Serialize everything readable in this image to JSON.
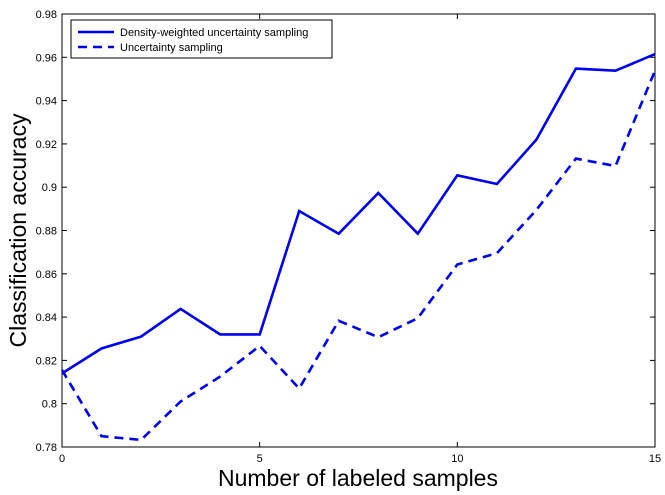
{
  "chart_data": {
    "type": "line",
    "title": "",
    "xlabel": "Number of labeled samples",
    "ylabel": "Classification accuracy",
    "xlim": [
      0,
      15
    ],
    "ylim": [
      0.78,
      0.98
    ],
    "xticks": [
      0,
      5,
      10,
      15
    ],
    "xtick_labels": [
      "0",
      "5",
      "10",
      "15"
    ],
    "yticks": [
      0.78,
      0.8,
      0.82,
      0.84,
      0.86,
      0.88,
      0.9,
      0.92,
      0.94,
      0.96,
      0.98
    ],
    "ytick_labels": [
      "0.78",
      "0.8",
      "0.82",
      "0.84",
      "0.86",
      "0.88",
      "0.9",
      "0.92",
      "0.94",
      "0.96",
      "0.98"
    ],
    "grid": false,
    "legend_position": "top-left",
    "x": [
      0,
      1,
      2,
      3,
      4,
      5,
      6,
      7,
      8,
      9,
      10,
      11,
      12,
      13,
      14,
      15
    ],
    "series": [
      {
        "name": "Density-weighted uncertainty sampling",
        "style": "solid",
        "color": "#0000ee",
        "values": [
          0.814,
          0.8255,
          0.831,
          0.8438,
          0.832,
          0.832,
          0.889,
          0.8785,
          0.8973,
          0.8785,
          0.9055,
          0.9015,
          0.922,
          0.9548,
          0.9538,
          0.9615
        ]
      },
      {
        "name": "Uncertainty sampling",
        "style": "dashed",
        "color": "#0000ee",
        "values": [
          0.8155,
          0.785,
          0.7833,
          0.801,
          0.8125,
          0.8267,
          0.807,
          0.8383,
          0.8307,
          0.8395,
          0.8643,
          0.8695,
          0.8895,
          0.9132,
          0.9098,
          0.9538
        ]
      }
    ]
  }
}
